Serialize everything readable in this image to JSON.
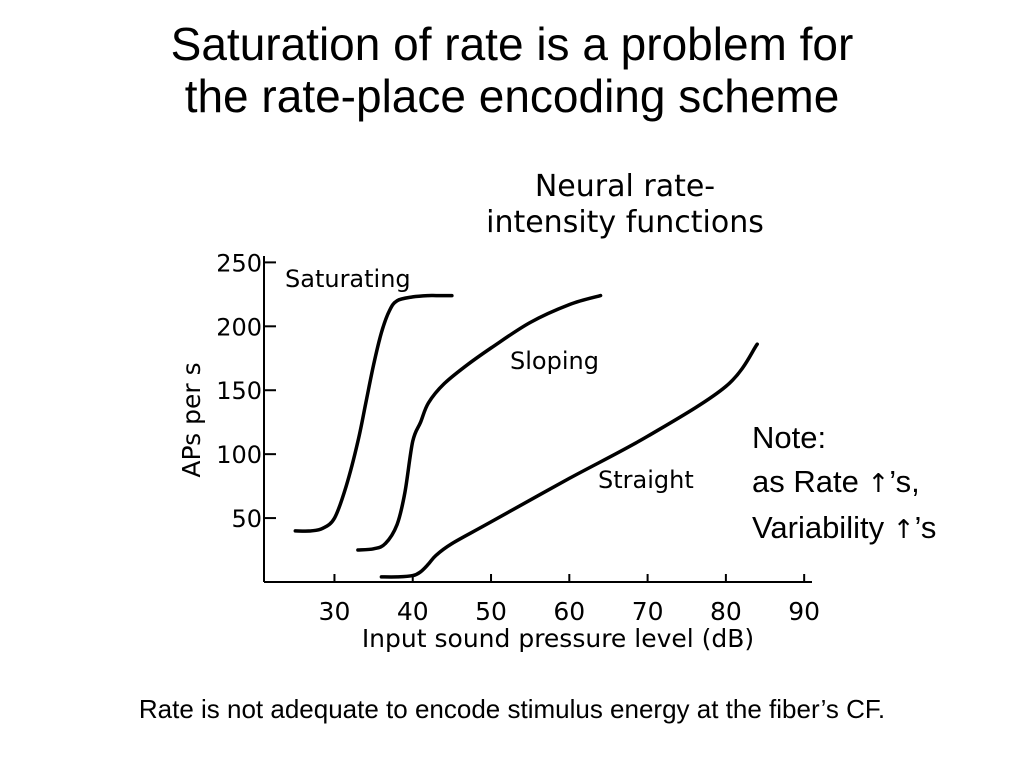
{
  "slide": {
    "title_line1": "Saturation of rate is a problem for",
    "title_line2": "the rate-place encoding scheme",
    "note": {
      "line1": "Note:",
      "line2_prefix": "as Rate ",
      "line2_suffix": "’s,",
      "line3_prefix": "Variability ",
      "line3_suffix": "’s",
      "arrow_symbol": "↑"
    },
    "footer": "Rate is not adequate to encode stimulus energy at the fiber’s CF."
  },
  "chart_data": {
    "type": "line",
    "title_lines": [
      "Neural rate-",
      "intensity functions"
    ],
    "xlabel": "Input sound pressure level (dB)",
    "ylabel": "APs per s",
    "xlim": [
      21,
      91
    ],
    "ylim": [
      0,
      255
    ],
    "x_ticks": [
      30,
      40,
      50,
      60,
      70,
      80,
      90
    ],
    "x_tick_labels": [
      "30",
      "40",
      "50",
      "60",
      "70",
      "80",
      "90"
    ],
    "y_ticks": [
      50,
      100,
      150,
      200,
      250
    ],
    "y_tick_labels": [
      "50",
      "100",
      "150",
      "200",
      "250"
    ],
    "series": [
      {
        "name": "Saturating",
        "x": [
          25,
          27,
          28.5,
          30,
          31.5,
          33,
          34,
          35,
          36,
          37,
          38,
          40,
          42,
          43,
          45
        ],
        "y": [
          40,
          40,
          42,
          50,
          75,
          110,
          140,
          170,
          195,
          212,
          220,
          223,
          224,
          224,
          224
        ]
      },
      {
        "name": "Sloping",
        "x": [
          33,
          35,
          36.5,
          38,
          39,
          40,
          41,
          42,
          44,
          47,
          50,
          55,
          60,
          64
        ],
        "y": [
          25,
          26,
          30,
          45,
          70,
          110,
          125,
          140,
          155,
          170,
          183,
          203,
          217,
          224
        ]
      },
      {
        "name": "Straight",
        "x": [
          36,
          38,
          40,
          41,
          42,
          43,
          45,
          50,
          60,
          70,
          80,
          84
        ],
        "y": [
          4,
          4,
          5,
          8,
          14,
          21,
          30,
          47,
          81,
          114,
          153,
          186
        ]
      }
    ]
  }
}
